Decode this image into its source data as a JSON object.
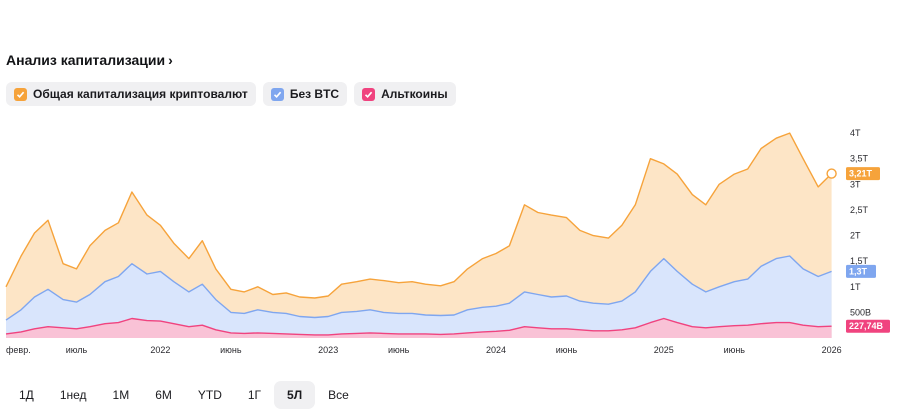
{
  "header": {
    "title": "Анализ капитализации",
    "chevron": "›"
  },
  "legend": [
    {
      "label": "Общая капитализация криптовалют",
      "color": "#f6a33b",
      "icon": "check-icon"
    },
    {
      "label": "Без BTC",
      "color": "#7fa6ef",
      "icon": "check-icon"
    },
    {
      "label": "Альткоины",
      "color": "#f0437f",
      "icon": "check-icon"
    }
  ],
  "ranges": [
    "1Д",
    "1нед",
    "1М",
    "6М",
    "YTD",
    "1Г",
    "5Л",
    "Все"
  ],
  "active_range": "5Л",
  "chart_data": {
    "type": "area",
    "y_ticks": [
      "500B",
      "1T",
      "1,5T",
      "2T",
      "2,5T",
      "3T",
      "3,5T",
      "4T"
    ],
    "y_tick_values": [
      0.5,
      1,
      1.5,
      2,
      2.5,
      3,
      3.5,
      4
    ],
    "ylim": [
      0,
      4.1
    ],
    "x_ticks": [
      "февр.",
      "июль",
      "2022",
      "июнь",
      "2023",
      "июнь",
      "2024",
      "июнь",
      "2025",
      "июнь",
      "2026"
    ],
    "x_tick_positions": [
      2021.08,
      2021.5,
      2022.0,
      2022.42,
      2023.0,
      2023.42,
      2024.0,
      2024.42,
      2025.0,
      2025.42,
      2026.0
    ],
    "xlim": [
      2021.08,
      2026.05
    ],
    "x": [
      2021.08,
      2021.17,
      2021.25,
      2021.33,
      2021.42,
      2021.5,
      2021.58,
      2021.67,
      2021.75,
      2021.83,
      2021.92,
      2022.0,
      2022.08,
      2022.17,
      2022.25,
      2022.33,
      2022.42,
      2022.5,
      2022.58,
      2022.67,
      2022.75,
      2022.83,
      2022.92,
      2023.0,
      2023.08,
      2023.17,
      2023.25,
      2023.33,
      2023.42,
      2023.5,
      2023.58,
      2023.67,
      2023.75,
      2023.83,
      2023.92,
      2024.0,
      2024.08,
      2024.17,
      2024.25,
      2024.33,
      2024.42,
      2024.5,
      2024.58,
      2024.67,
      2024.75,
      2024.83,
      2024.92,
      2025.0,
      2025.08,
      2025.17,
      2025.25,
      2025.33,
      2025.42,
      2025.5,
      2025.58,
      2025.67,
      2025.75,
      2025.83,
      2025.92,
      2026.0
    ],
    "series": [
      {
        "name": "Общая капитализация криптовалют",
        "color": "#f6a33b",
        "values": [
          1.0,
          1.6,
          2.05,
          2.3,
          1.45,
          1.35,
          1.8,
          2.1,
          2.25,
          2.85,
          2.4,
          2.2,
          1.85,
          1.55,
          1.9,
          1.35,
          0.95,
          0.9,
          1.0,
          0.85,
          0.88,
          0.8,
          0.78,
          0.82,
          1.05,
          1.1,
          1.15,
          1.12,
          1.08,
          1.1,
          1.05,
          1.02,
          1.1,
          1.35,
          1.55,
          1.65,
          1.8,
          2.6,
          2.45,
          2.4,
          2.35,
          2.1,
          2.0,
          1.95,
          2.2,
          2.6,
          3.5,
          3.4,
          3.2,
          2.8,
          2.6,
          3.0,
          3.2,
          3.3,
          3.7,
          3.9,
          4.0,
          3.5,
          2.95,
          3.21
        ]
      },
      {
        "name": "Без BTC",
        "color": "#7fa6ef",
        "values": [
          0.35,
          0.55,
          0.8,
          0.95,
          0.75,
          0.7,
          0.85,
          1.1,
          1.2,
          1.45,
          1.25,
          1.3,
          1.1,
          0.9,
          1.05,
          0.75,
          0.5,
          0.48,
          0.55,
          0.5,
          0.48,
          0.42,
          0.4,
          0.42,
          0.5,
          0.52,
          0.55,
          0.5,
          0.48,
          0.48,
          0.45,
          0.44,
          0.45,
          0.55,
          0.6,
          0.62,
          0.68,
          0.9,
          0.85,
          0.8,
          0.82,
          0.72,
          0.68,
          0.66,
          0.72,
          0.9,
          1.3,
          1.55,
          1.3,
          1.05,
          0.9,
          1.0,
          1.1,
          1.15,
          1.4,
          1.55,
          1.6,
          1.35,
          1.2,
          1.3
        ]
      },
      {
        "name": "Альткоины",
        "color": "#f0437f",
        "values": [
          0.08,
          0.12,
          0.18,
          0.22,
          0.2,
          0.18,
          0.22,
          0.28,
          0.3,
          0.38,
          0.34,
          0.33,
          0.28,
          0.22,
          0.25,
          0.16,
          0.1,
          0.09,
          0.1,
          0.09,
          0.08,
          0.07,
          0.06,
          0.06,
          0.08,
          0.09,
          0.1,
          0.09,
          0.08,
          0.08,
          0.08,
          0.07,
          0.08,
          0.1,
          0.12,
          0.13,
          0.15,
          0.22,
          0.2,
          0.18,
          0.18,
          0.16,
          0.14,
          0.14,
          0.16,
          0.2,
          0.3,
          0.38,
          0.3,
          0.22,
          0.2,
          0.22,
          0.24,
          0.25,
          0.28,
          0.3,
          0.3,
          0.25,
          0.22,
          0.23
        ]
      }
    ],
    "current_labels": [
      {
        "label": "3,21T",
        "color": "#f6a33b",
        "value": 3.21
      },
      {
        "label": "1,3T",
        "color": "#7fa6ef",
        "value": 1.3
      },
      {
        "label": "227,74B",
        "color": "#f0437f",
        "value": 0.23
      }
    ],
    "grid": false
  }
}
